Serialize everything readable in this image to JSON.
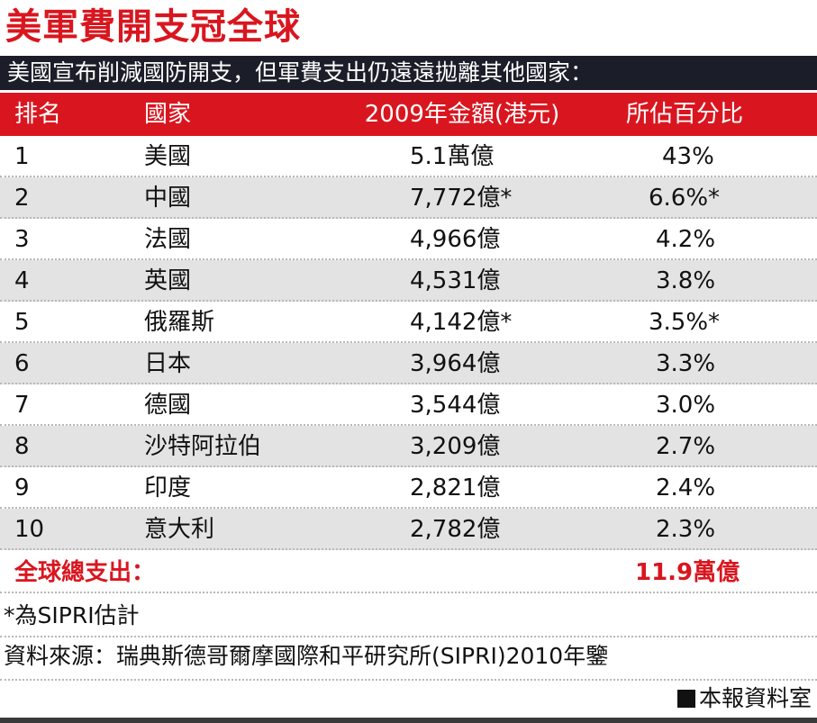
{
  "title": "美軍費開支冠全球",
  "subtitle": "美國宣布削減國防開支，但軍費支出仍遠遠拋離其他國家：",
  "columns": {
    "rank": "排名",
    "country": "國家",
    "amount": "2009年金額(港元)",
    "percent": "所佔百分比"
  },
  "rows": [
    {
      "rank": "1",
      "country": "美國",
      "amount": "5.1萬億",
      "percent": "43%"
    },
    {
      "rank": "2",
      "country": "中國",
      "amount": "7,772億*",
      "percent": "6.6%*"
    },
    {
      "rank": "3",
      "country": "法國",
      "amount": "4,966億",
      "percent": "4.2%"
    },
    {
      "rank": "4",
      "country": "英國",
      "amount": "4,531億",
      "percent": "3.8%"
    },
    {
      "rank": "5",
      "country": "俄羅斯",
      "amount": "4,142億*",
      "percent": "3.5%*"
    },
    {
      "rank": "6",
      "country": "日本",
      "amount": "3,964億",
      "percent": "3.3%"
    },
    {
      "rank": "7",
      "country": "德國",
      "amount": "3,544億",
      "percent": "3.0%"
    },
    {
      "rank": "8",
      "country": "沙特阿拉伯",
      "amount": "3,209億",
      "percent": "2.7%"
    },
    {
      "rank": "9",
      "country": "印度",
      "amount": "2,821億",
      "percent": "2.4%"
    },
    {
      "rank": "10",
      "country": "意大利",
      "amount": "2,782億",
      "percent": "2.3%"
    }
  ],
  "total": {
    "label": "全球總支出：",
    "value": "11.9萬億"
  },
  "footnote": "*為SIPRI估計",
  "source": "資料來源：瑞典斯德哥爾摩國際和平研究所(SIPRI)2010年鑒",
  "credit": "本報資料室",
  "colors": {
    "accent_red": "#d9161f",
    "subtitle_bar": "#1b1e28",
    "stripe_gray": "#e3e3e3"
  }
}
